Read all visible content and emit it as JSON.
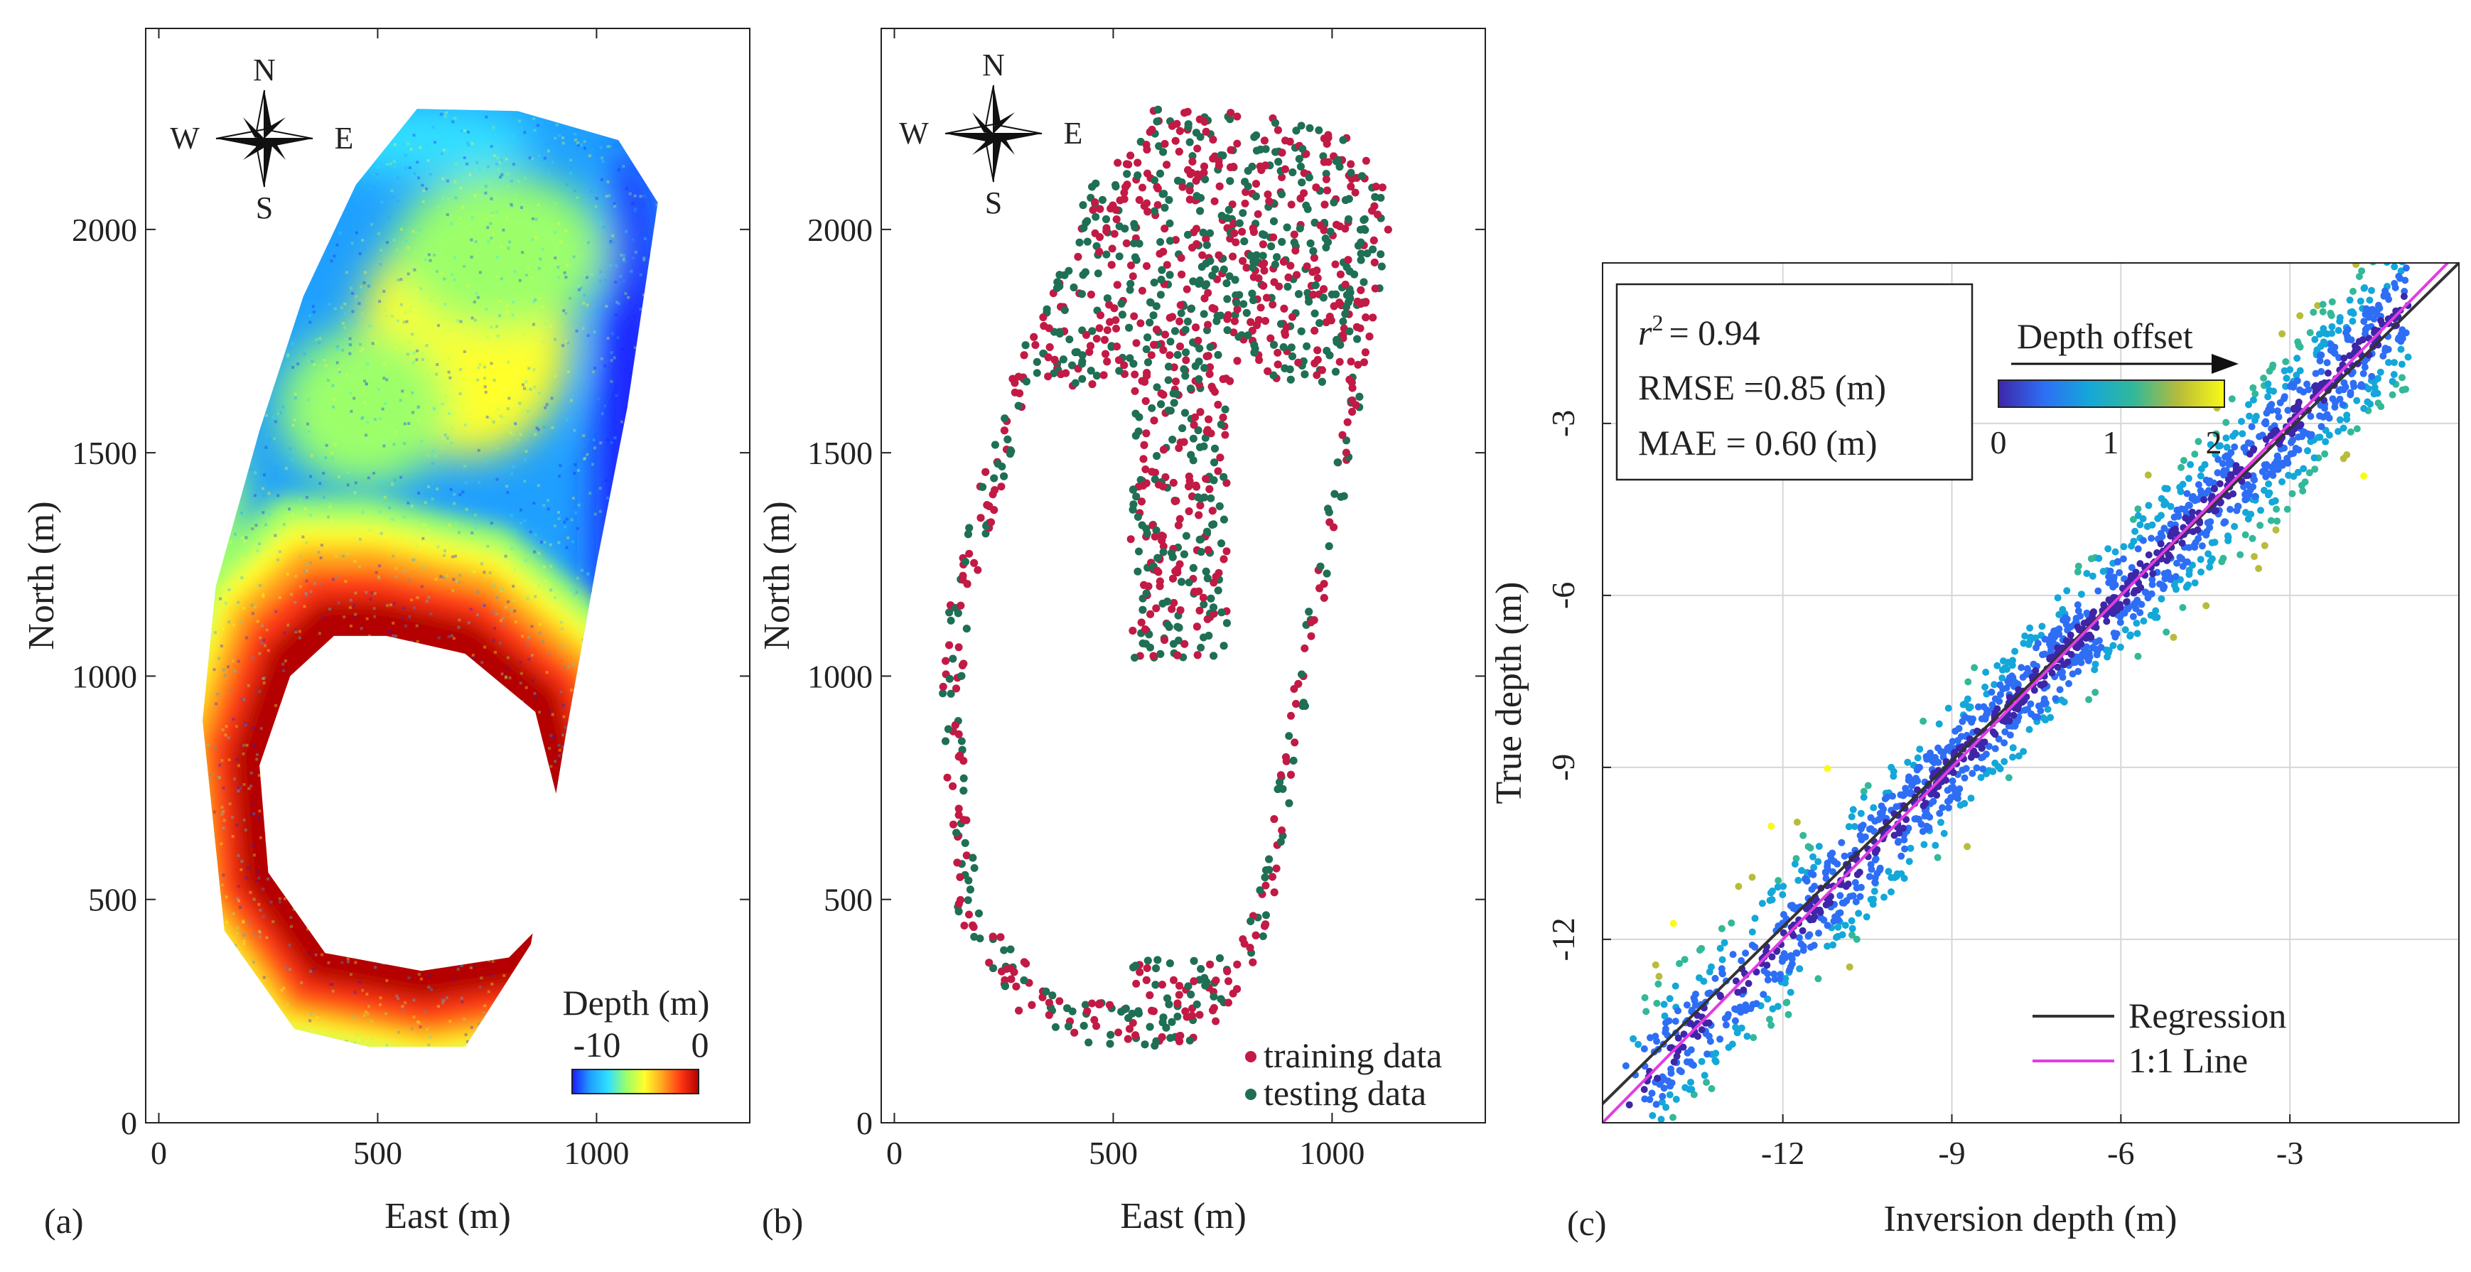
{
  "panels": {
    "a": {
      "label": "(a)",
      "xlabel": "East (m)",
      "ylabel": "North (m)",
      "xlim": [
        -30,
        1350
      ],
      "ylim": [
        0,
        2450
      ],
      "xticks": [
        0,
        500,
        1000
      ],
      "yticks": [
        0,
        500,
        1000,
        1500,
        2000
      ],
      "compass": {
        "n": "N",
        "s": "S",
        "e": "E",
        "w": "W"
      },
      "colorbar": {
        "title": "Depth (m)",
        "min_label": "-10",
        "max_label": "0",
        "colors": [
          "#1a1aff",
          "#1fa0ff",
          "#30e0ff",
          "#9cff6a",
          "#ffff2a",
          "#ffa51e",
          "#ff3814",
          "#b40000"
        ]
      }
    },
    "b": {
      "label": "(b)",
      "xlabel": "East (m)",
      "ylabel": "North (m)",
      "xlim": [
        -30,
        1350
      ],
      "ylim": [
        0,
        2450
      ],
      "xticks": [
        0,
        500,
        1000
      ],
      "yticks": [
        0,
        500,
        1000,
        1500,
        2000
      ],
      "compass": {
        "n": "N",
        "s": "S",
        "e": "E",
        "w": "W"
      },
      "legend": [
        {
          "label": "training data",
          "color": "#c21a45"
        },
        {
          "label": "testing data",
          "color": "#1f6f55"
        }
      ]
    },
    "c": {
      "label": "(c)",
      "xlabel": "Inversion depth (m)",
      "ylabel": "True depth (m)"
    }
  },
  "chart_data": [
    {
      "type": "heatmap",
      "panel": "a",
      "title": "",
      "xlabel": "East (m)",
      "ylabel": "North (m)",
      "description_values": {
        "depth_range": [
          -10,
          0
        ],
        "unit": "m"
      },
      "outline": {
        "x": [
          590,
          820,
          1050,
          1140,
          1070,
          1000,
          930,
          850,
          700,
          480,
          310,
          150,
          100,
          130,
          230,
          330,
          450,
          590
        ],
        "y": [
          2270,
          2265,
          2200,
          2060,
          1600,
          1250,
          870,
          400,
          170,
          170,
          210,
          430,
          900,
          1200,
          1550,
          1850,
          2100,
          2270
        ]
      },
      "hole": {
        "x": [
          520,
          700,
          860,
          930,
          900,
          800,
          600,
          380,
          250,
          230,
          300,
          400,
          520
        ],
        "y": [
          1090,
          1050,
          920,
          650,
          470,
          370,
          340,
          380,
          560,
          800,
          1000,
          1090,
          1090
        ]
      }
    },
    {
      "type": "scatter",
      "panel": "b",
      "title": "",
      "xlabel": "East (m)",
      "ylabel": "North (m)",
      "xlim": [
        -30,
        1350
      ],
      "ylim": [
        0,
        2450
      ],
      "series": [
        {
          "name": "training data",
          "color": "#c21a45"
        },
        {
          "name": "testing data",
          "color": "#1f6f55"
        }
      ]
    },
    {
      "type": "scatter",
      "panel": "c",
      "title": "",
      "xlabel": "Inversion depth (m)",
      "ylabel": "True depth (m)",
      "xlim": [
        -15.2,
        0.0
      ],
      "ylim": [
        -15.2,
        -0.2
      ],
      "xticks": [
        -12,
        -9,
        -6,
        -3
      ],
      "yticks": [
        -12,
        -9,
        -6,
        -3
      ],
      "grid": true,
      "colorbar": {
        "title": "Depth offset",
        "tick_labels": [
          "0",
          "1",
          "2"
        ],
        "range": [
          0,
          2.2
        ]
      },
      "stats": {
        "r2_label": "r",
        "r2_sup": "2",
        "r2_value": "= 0.94",
        "rmse": "RMSE =0.85 (m)",
        "mae": "MAE = 0.60 (m)"
      },
      "lines": [
        {
          "name": "Regression",
          "color": "#333333",
          "slope": 0.965,
          "intercept": -0.2
        },
        {
          "name": "1:1 Line",
          "color": "#e23ce0",
          "slope": 1.0,
          "intercept": 0.0
        }
      ],
      "n_points": 1800
    }
  ]
}
